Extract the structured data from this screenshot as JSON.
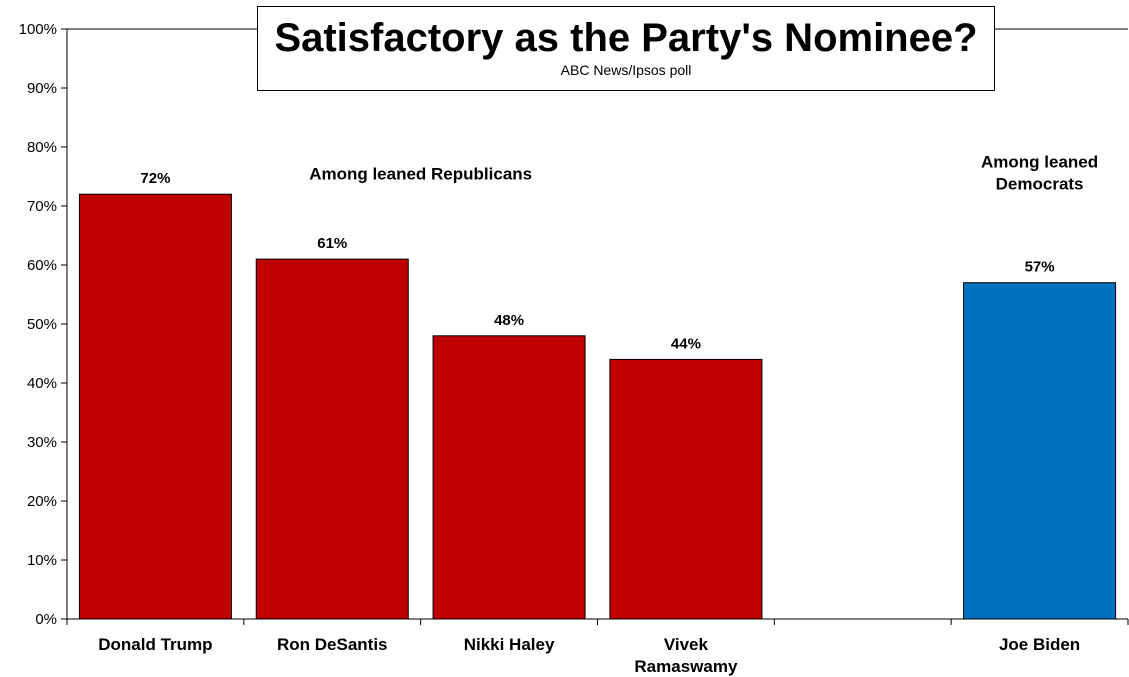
{
  "chart_data": {
    "type": "bar",
    "title": "Satisfactory as the Party's Nominee?",
    "subtitle": "ABC News/Ipsos  poll",
    "categories": [
      "Donald Trump",
      "Ron DeSantis",
      "Nikki Haley",
      "Vivek Ramaswamy",
      "",
      "Joe Biden"
    ],
    "category_lines": [
      [
        "Donald Trump"
      ],
      [
        "Ron DeSantis"
      ],
      [
        "Nikki Haley"
      ],
      [
        "Vivek",
        "Ramaswamy"
      ],
      [],
      [
        "Joe Biden"
      ]
    ],
    "values": [
      72,
      61,
      48,
      44,
      null,
      57
    ],
    "data_labels": [
      "72%",
      "61%",
      "48%",
      "44%",
      "",
      "57%"
    ],
    "bar_colors": [
      "#c00000",
      "#c00000",
      "#c00000",
      "#c00000",
      "",
      "#0070c0"
    ],
    "ylim": [
      0,
      100
    ],
    "yticks": [
      0,
      10,
      20,
      30,
      40,
      50,
      60,
      70,
      80,
      90,
      100
    ],
    "ytick_labels": [
      "0%",
      "10%",
      "20%",
      "30%",
      "40%",
      "50%",
      "60%",
      "70%",
      "80%",
      "90%",
      "100%"
    ],
    "xlabel": "",
    "ylabel": "",
    "grid": false,
    "legend": "none",
    "annotations": [
      {
        "lines": [
          "Among leaned Republicans"
        ],
        "group": "republicans"
      },
      {
        "lines": [
          "Among leaned",
          "Democrats"
        ],
        "group": "democrats"
      }
    ]
  }
}
